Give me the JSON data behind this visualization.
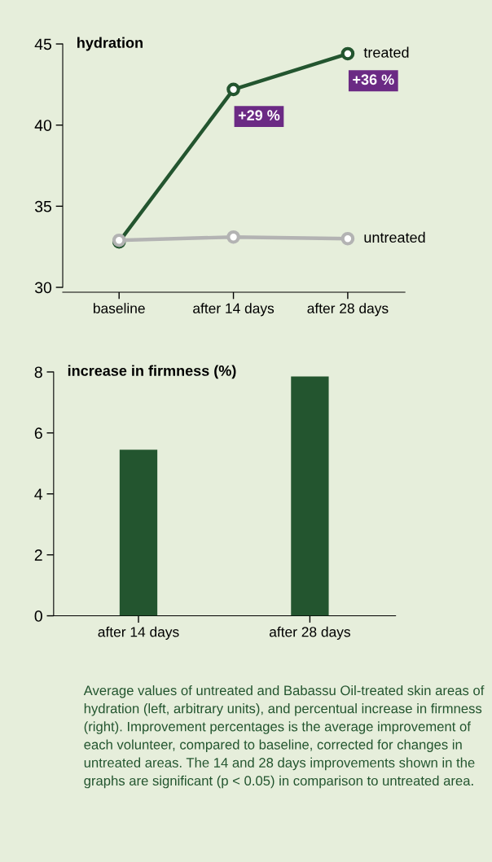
{
  "chart_data": [
    {
      "type": "line",
      "title": "hydration",
      "categories": [
        "baseline",
        "after 14 days",
        "after 28 days"
      ],
      "ylim": [
        29.7,
        45
      ],
      "yticks": [
        30,
        35,
        40,
        45
      ],
      "marker": "circle",
      "line_style": "solid",
      "grid": false,
      "legend": false,
      "series": [
        {
          "name": "treated",
          "color": "#23552f",
          "values": [
            32.8,
            42.2,
            44.4
          ]
        },
        {
          "name": "untreated",
          "color": "#b3b3b3",
          "values": [
            32.9,
            33.1,
            33.0
          ]
        }
      ],
      "annotations": [
        {
          "text": "+29 %",
          "x": "after 14 days",
          "y": 42.2
        },
        {
          "text": "+36 %",
          "x": "after 28 days",
          "y": 44.4
        }
      ]
    },
    {
      "type": "bar",
      "title": "increase in firmness (%)",
      "categories": [
        "after 14 days",
        "after 28 days"
      ],
      "values": [
        5.45,
        7.85
      ],
      "color": "#23552f",
      "ylim": [
        0,
        8
      ],
      "yticks": [
        0,
        2,
        4,
        6,
        8
      ],
      "grid": false,
      "annotations": [
        "Average values of untreated and Babassu Oil-treated skin areas of hydration (left, arbitrary units), and percentual increase in firmness (right). Improvement percentages is the average improvement of each volunteer, compared to baseline, corrected for changes in untreated areas. The 14 and 28 days improvements shown in the graphs are significant (p < 0.05) in comparison to untreated area."
      ]
    }
  ]
}
